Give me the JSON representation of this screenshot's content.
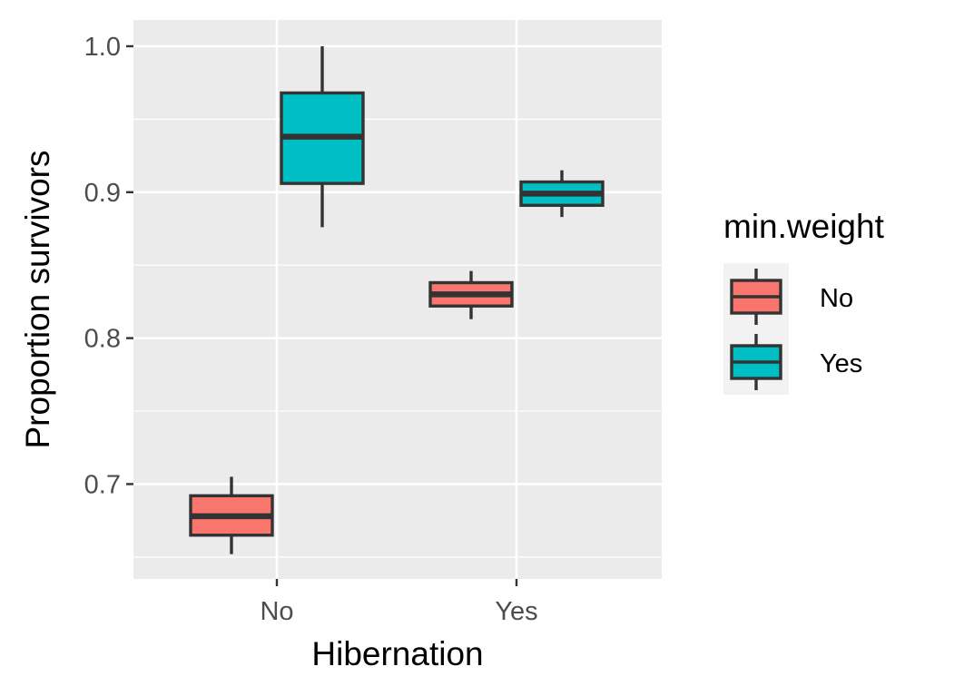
{
  "chart_data": {
    "type": "boxplot",
    "title": "",
    "xlabel": "Hibernation",
    "ylabel": "Proportion survivors",
    "categories": [
      "No",
      "Yes"
    ],
    "ylim": [
      0.635,
      1.018
    ],
    "y_ticks": [
      0.7,
      0.8,
      0.9,
      1.0
    ],
    "y_tick_labels": [
      "0.7",
      "0.8",
      "0.9",
      "1.0"
    ],
    "y_minor_ticks": [
      0.65,
      0.75,
      0.85,
      0.95
    ],
    "grid": true,
    "legend": {
      "title": "min.weight",
      "position": "right",
      "entries": [
        "No",
        "Yes"
      ]
    },
    "colors": {
      "No": "#F8766D",
      "Yes": "#00BFC4",
      "panel": "#EBEBEB",
      "grid": "#FFFFFF",
      "box_line": "#333333"
    },
    "series": [
      {
        "name": "No",
        "boxes": [
          {
            "category": "No",
            "min": 0.652,
            "q1": 0.665,
            "median": 0.678,
            "q3": 0.692,
            "max": 0.705
          },
          {
            "category": "Yes",
            "min": 0.813,
            "q1": 0.822,
            "median": 0.83,
            "q3": 0.838,
            "max": 0.846
          }
        ]
      },
      {
        "name": "Yes",
        "boxes": [
          {
            "category": "No",
            "min": 0.876,
            "q1": 0.906,
            "median": 0.938,
            "q3": 0.968,
            "max": 1.0
          },
          {
            "category": "Yes",
            "min": 0.883,
            "q1": 0.891,
            "median": 0.899,
            "q3": 0.907,
            "max": 0.915
          }
        ]
      }
    ]
  }
}
